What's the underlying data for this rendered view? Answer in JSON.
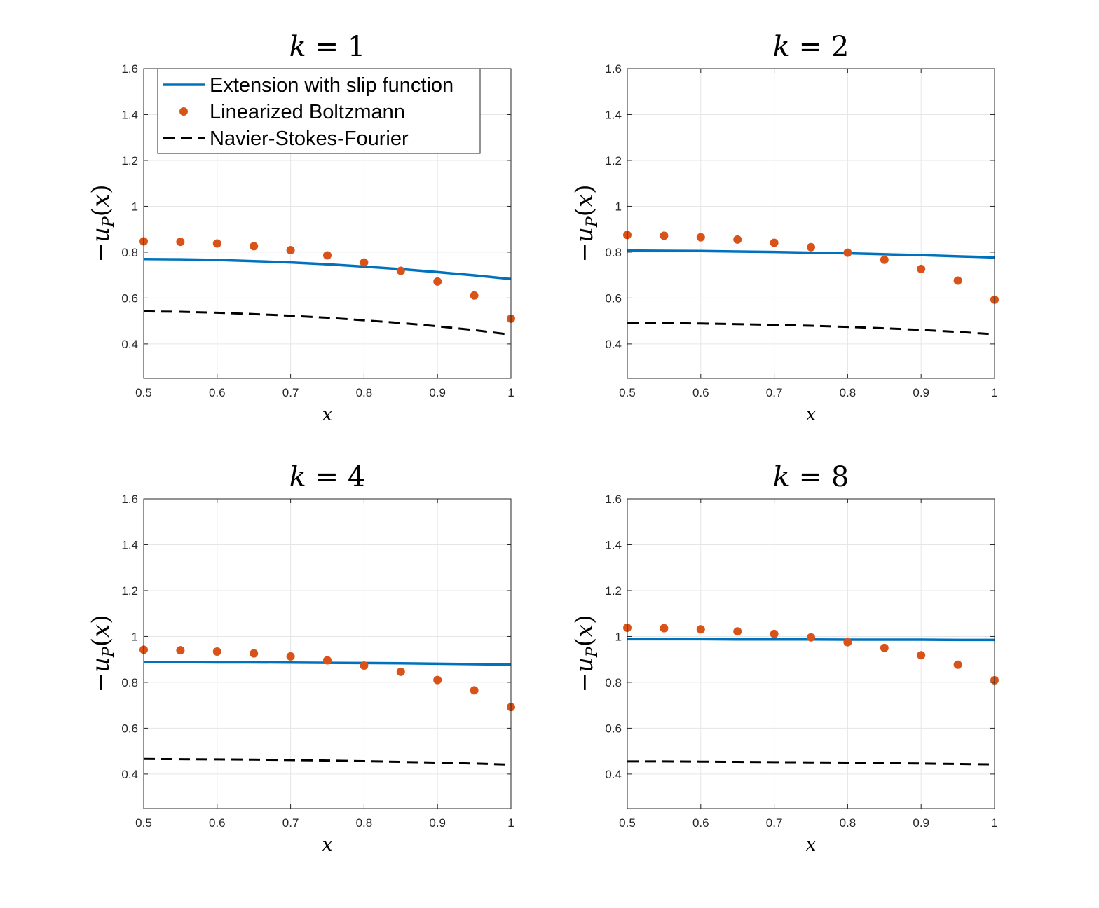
{
  "chart_data": [
    {
      "type": "line",
      "title": "k = 1",
      "title_var": "k",
      "title_val": "1",
      "xlabel": "x",
      "ylabel": "−u_P(x)",
      "xlim": [
        0.5,
        1
      ],
      "ylim": [
        0.25,
        1.6
      ],
      "xticks": [
        "0.5",
        "0.6",
        "0.7",
        "0.8",
        "0.9",
        "1"
      ],
      "yticks": [
        "0.4",
        "0.6",
        "0.8",
        "1",
        "1.2",
        "1.4",
        "1.6"
      ],
      "grid": true,
      "legend": "top",
      "series": [
        {
          "name": "Extension with slip function",
          "style": "solid",
          "color": "#0072BD",
          "x": [
            0.5,
            0.55,
            0.6,
            0.65,
            0.7,
            0.75,
            0.8,
            0.85,
            0.9,
            0.95,
            1.0
          ],
          "y": [
            0.77,
            0.769,
            0.766,
            0.761,
            0.755,
            0.747,
            0.737,
            0.726,
            0.713,
            0.699,
            0.683
          ]
        },
        {
          "name": "Linearized Boltzmann",
          "style": "markers",
          "color": "#D95319",
          "x": [
            0.5,
            0.55,
            0.6,
            0.65,
            0.7,
            0.75,
            0.8,
            0.85,
            0.9,
            0.95,
            1.0
          ],
          "y": [
            0.847,
            0.845,
            0.838,
            0.826,
            0.809,
            0.786,
            0.755,
            0.719,
            0.672,
            0.611,
            0.51
          ]
        },
        {
          "name": "Navier-Stokes-Fourier",
          "style": "dashed",
          "color": "#000000",
          "x": [
            0.5,
            0.55,
            0.6,
            0.65,
            0.7,
            0.75,
            0.8,
            0.85,
            0.9,
            0.95,
            1.0
          ],
          "y": [
            0.542,
            0.54,
            0.536,
            0.53,
            0.523,
            0.514,
            0.503,
            0.491,
            0.477,
            0.46,
            0.44
          ]
        }
      ]
    },
    {
      "type": "line",
      "title": "k = 2",
      "title_var": "k",
      "title_val": "2",
      "xlabel": "x",
      "ylabel": "−u_P(x)",
      "xlim": [
        0.5,
        1
      ],
      "ylim": [
        0.25,
        1.6
      ],
      "xticks": [
        "0.5",
        "0.6",
        "0.7",
        "0.8",
        "0.9",
        "1"
      ],
      "yticks": [
        "0.4",
        "0.6",
        "0.8",
        "1",
        "1.2",
        "1.4",
        "1.6"
      ],
      "grid": true,
      "series": [
        {
          "name": "Extension with slip function",
          "style": "solid",
          "color": "#0072BD",
          "x": [
            0.5,
            0.55,
            0.6,
            0.65,
            0.7,
            0.75,
            0.8,
            0.85,
            0.9,
            0.95,
            1.0
          ],
          "y": [
            0.807,
            0.806,
            0.805,
            0.803,
            0.801,
            0.798,
            0.795,
            0.791,
            0.787,
            0.782,
            0.777
          ]
        },
        {
          "name": "Linearized Boltzmann",
          "style": "markers",
          "color": "#D95319",
          "x": [
            0.5,
            0.55,
            0.6,
            0.65,
            0.7,
            0.75,
            0.8,
            0.85,
            0.9,
            0.95,
            1.0
          ],
          "y": [
            0.875,
            0.872,
            0.865,
            0.855,
            0.841,
            0.822,
            0.798,
            0.767,
            0.727,
            0.676,
            0.593
          ]
        },
        {
          "name": "Navier-Stokes-Fourier",
          "style": "dashed",
          "color": "#000000",
          "x": [
            0.5,
            0.55,
            0.6,
            0.65,
            0.7,
            0.75,
            0.8,
            0.85,
            0.9,
            0.95,
            1.0
          ],
          "y": [
            0.492,
            0.491,
            0.489,
            0.486,
            0.483,
            0.479,
            0.474,
            0.468,
            0.461,
            0.452,
            0.442
          ]
        }
      ]
    },
    {
      "type": "line",
      "title": "k = 4",
      "title_var": "k",
      "title_val": "4",
      "xlabel": "x",
      "ylabel": "−u_P(x)",
      "xlim": [
        0.5,
        1
      ],
      "ylim": [
        0.25,
        1.6
      ],
      "xticks": [
        "0.5",
        "0.6",
        "0.7",
        "0.8",
        "0.9",
        "1"
      ],
      "yticks": [
        "0.4",
        "0.6",
        "0.8",
        "1",
        "1.2",
        "1.4",
        "1.6"
      ],
      "grid": true,
      "series": [
        {
          "name": "Extension with slip function",
          "style": "solid",
          "color": "#0072BD",
          "x": [
            0.5,
            0.55,
            0.6,
            0.65,
            0.7,
            0.75,
            0.8,
            0.85,
            0.9,
            0.95,
            1.0
          ],
          "y": [
            0.888,
            0.888,
            0.887,
            0.887,
            0.886,
            0.885,
            0.884,
            0.883,
            0.881,
            0.879,
            0.877
          ]
        },
        {
          "name": "Linearized Boltzmann",
          "style": "markers",
          "color": "#D95319",
          "x": [
            0.5,
            0.55,
            0.6,
            0.65,
            0.7,
            0.75,
            0.8,
            0.85,
            0.9,
            0.95,
            1.0
          ],
          "y": [
            0.942,
            0.94,
            0.934,
            0.926,
            0.913,
            0.896,
            0.873,
            0.846,
            0.81,
            0.765,
            0.692
          ]
        },
        {
          "name": "Navier-Stokes-Fourier",
          "style": "dashed",
          "color": "#000000",
          "x": [
            0.5,
            0.55,
            0.6,
            0.65,
            0.7,
            0.75,
            0.8,
            0.85,
            0.9,
            0.95,
            1.0
          ],
          "y": [
            0.466,
            0.465,
            0.464,
            0.463,
            0.461,
            0.459,
            0.456,
            0.453,
            0.45,
            0.446,
            0.441
          ]
        }
      ]
    },
    {
      "type": "line",
      "title": "k = 8",
      "title_var": "k",
      "title_val": "8",
      "xlabel": "x",
      "ylabel": "−u_P(x)",
      "xlim": [
        0.5,
        1
      ],
      "ylim": [
        0.25,
        1.6
      ],
      "xticks": [
        "0.5",
        "0.6",
        "0.7",
        "0.8",
        "0.9",
        "1"
      ],
      "yticks": [
        "0.4",
        "0.6",
        "0.8",
        "1",
        "1.2",
        "1.4",
        "1.6"
      ],
      "grid": true,
      "series": [
        {
          "name": "Extension with slip function",
          "style": "solid",
          "color": "#0072BD",
          "x": [
            0.5,
            0.55,
            0.6,
            0.65,
            0.7,
            0.75,
            0.8,
            0.85,
            0.9,
            0.95,
            1.0
          ],
          "y": [
            0.988,
            0.988,
            0.988,
            0.987,
            0.987,
            0.987,
            0.986,
            0.986,
            0.986,
            0.985,
            0.985
          ]
        },
        {
          "name": "Linearized Boltzmann",
          "style": "markers",
          "color": "#D95319",
          "x": [
            0.5,
            0.55,
            0.6,
            0.65,
            0.7,
            0.75,
            0.8,
            0.85,
            0.9,
            0.95,
            1.0
          ],
          "y": [
            1.038,
            1.036,
            1.031,
            1.022,
            1.011,
            0.996,
            0.975,
            0.95,
            0.918,
            0.877,
            0.809
          ]
        },
        {
          "name": "Navier-Stokes-Fourier",
          "style": "dashed",
          "color": "#000000",
          "x": [
            0.5,
            0.55,
            0.6,
            0.65,
            0.7,
            0.75,
            0.8,
            0.85,
            0.9,
            0.95,
            1.0
          ],
          "y": [
            0.455,
            0.455,
            0.454,
            0.453,
            0.452,
            0.451,
            0.45,
            0.448,
            0.446,
            0.444,
            0.442
          ]
        }
      ]
    }
  ]
}
